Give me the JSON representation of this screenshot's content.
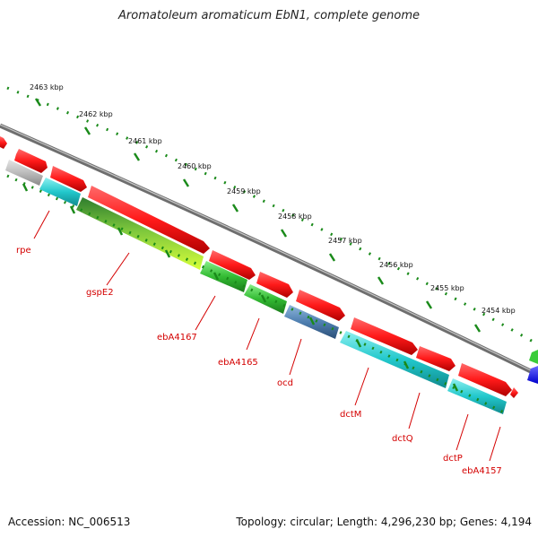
{
  "title": "Aromatoleum aromaticum EbN1, complete genome",
  "footer": {
    "accession": "Accession: NC_006513",
    "summary": "Topology: circular; Length: 4,296,230 bp; Genes: 4,194"
  },
  "kbp_labels": [
    "2463 kbp",
    "2462 kbp",
    "2461 kbp",
    "2460 kbp",
    "2459 kbp",
    "2458 kbp",
    "2457 kbp",
    "2456 kbp",
    "2455 kbp",
    "2454 kbp"
  ],
  "gene_labels": [
    "rpe",
    "gspE2",
    "ebA4167",
    "ebA4165",
    "ocd",
    "dctM",
    "dctQ",
    "dctP",
    "ebA4157"
  ],
  "colors": {
    "forward": "#ff1a1a",
    "reverse_cyan": "#22c8cc",
    "reverse_green": "#33bb33",
    "gray": "#b8b8b8",
    "steel": "#4f7fb0",
    "backbone": "#707070",
    "ticks": "#1a8a1a",
    "label": "#d40000"
  }
}
